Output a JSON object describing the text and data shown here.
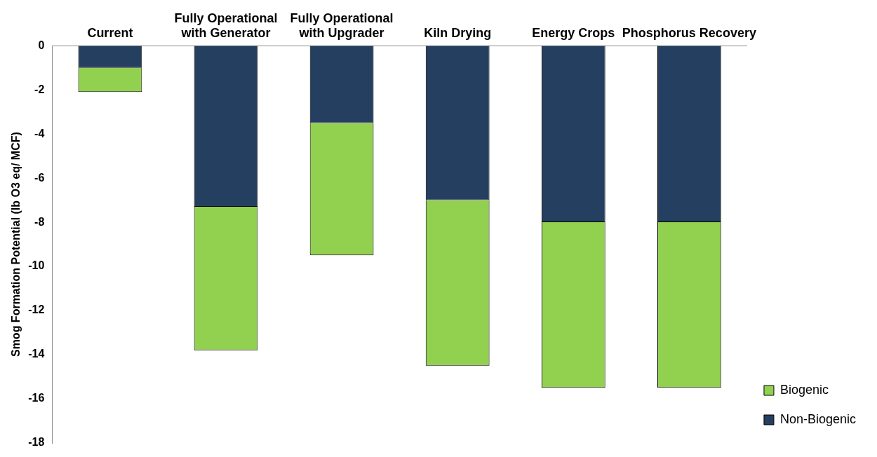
{
  "chart_data": {
    "type": "bar",
    "stacked": true,
    "ylabel": "Smog Formation Potential (lb O3 eq/ MCF)",
    "categories": [
      "Current",
      "Fully Operational with Generator",
      "Fully Operational with Upgrader",
      "Kiln Drying",
      "Energy Crops",
      "Phosphorus Recovery"
    ],
    "series": [
      {
        "name": "Non-Biogenic",
        "color": "#243f60",
        "values": [
          -1.0,
          -7.3,
          -3.5,
          -7.0,
          -8.0,
          -8.0
        ]
      },
      {
        "name": "Biogenic",
        "color": "#92d050",
        "values": [
          -1.1,
          -6.5,
          -6.0,
          -7.5,
          -7.5,
          -7.5
        ]
      }
    ],
    "ylim": [
      -18,
      0
    ],
    "yticks": [
      0,
      -2,
      -4,
      -6,
      -8,
      -10,
      -12,
      -14,
      -16,
      -18
    ],
    "grid": false,
    "legend": "bottom right"
  }
}
